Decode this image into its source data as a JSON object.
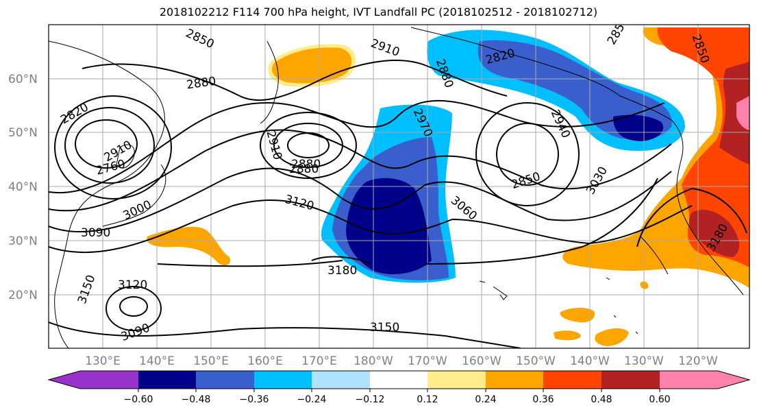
{
  "title": "2018102212 F114 700 hPa height, IVT Landfall PC (2018102512 - 2018102712)",
  "lat_labels": [
    "60°N",
    "50°N",
    "40°N",
    "30°N",
    "20°N"
  ],
  "lon_labels": [
    "130°E",
    "140°E",
    "150°E",
    "160°E",
    "170°E",
    "180°W",
    "170°W",
    "160°W",
    "150°W",
    "140°W",
    "130°W",
    "120°W"
  ],
  "contour_labels": [
    "2850",
    "2910",
    "2820",
    "2880",
    "2880",
    "2820",
    "2910",
    "2880",
    "2880",
    "2970",
    "2940",
    "2910",
    "2850",
    "2760",
    "3000",
    "3120",
    "3060",
    "3030",
    "3090",
    "3180",
    "3180",
    "3150",
    "3120",
    "3090",
    "3150",
    "2850",
    "2850"
  ],
  "colorbar": {
    "tick_labels": [
      "−0.60",
      "−0.48",
      "−0.36",
      "−0.24",
      "−0.12",
      "0.12",
      "0.24",
      "0.36",
      "0.48",
      "0.60"
    ],
    "colors": [
      "#9932cc",
      "#00008b",
      "#3a5fcd",
      "#00bfff",
      "#b0e2ff",
      "#ffffff",
      "#ffec8b",
      "#ffa500",
      "#ff4500",
      "#b22222",
      "#ff82ab"
    ]
  }
}
